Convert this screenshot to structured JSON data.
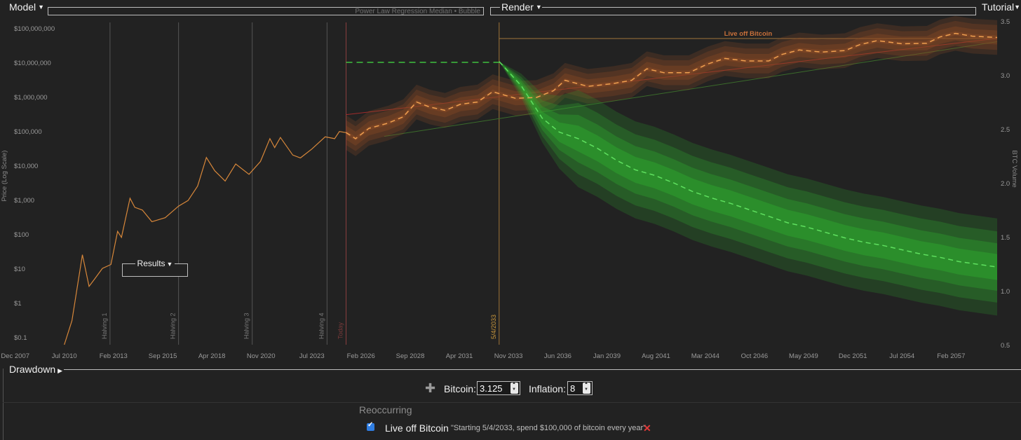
{
  "menus": {
    "model": "Model",
    "model_subtitle": "Power Law Regression Median • Bubble",
    "render": "Render",
    "tutorial": "Tutorial",
    "results": "Results",
    "drawdown": "Drawdown"
  },
  "colors": {
    "background": "#222222",
    "price": "#d7873a",
    "projection_band": "#8a4a26",
    "drawdown": "#2fa82f",
    "grid": "#3a3a3a",
    "halving_line": "#555555",
    "today_line": "#8b3f3f",
    "event_line": "#a0743a"
  },
  "chart_data": {
    "type": "line",
    "ylabel_left": "Price (Log Scale)",
    "ylabel_right": "BTC Volume",
    "y_scale": "log",
    "y_ticks": [
      "$100,000,000",
      "$10,000,000",
      "$1,000,000",
      "$100,000",
      "$10,000",
      "$1,000",
      "$100",
      "$10",
      "$1",
      "$0.1"
    ],
    "y_tick_values": [
      100000000,
      10000000,
      1000000,
      100000,
      10000,
      1000,
      100,
      10,
      1,
      0.1
    ],
    "y2_ticks": [
      "3.5",
      "3.0",
      "2.5",
      "2.0",
      "1.5",
      "1.0",
      "0.5"
    ],
    "y2_tick_values": [
      3.5,
      3.0,
      2.5,
      2.0,
      1.5,
      1.0,
      0.5
    ],
    "x_ticks": [
      "Dec 2007",
      "Jul 2010",
      "Feb 2013",
      "Sep 2015",
      "Apr 2018",
      "Nov 2020",
      "Jul 2023",
      "Feb 2026",
      "Sep 2028",
      "Apr 2031",
      "Nov 2033",
      "Jun 2036",
      "Jan 2039",
      "Aug 2041",
      "Mar 2044",
      "Oct 2046",
      "May 2049",
      "Dec 2051",
      "Jul 2054",
      "Feb 2057"
    ],
    "x_tick_years": [
      2007.92,
      2010.5,
      2013.08,
      2015.67,
      2018.25,
      2020.83,
      2023.5,
      2026.08,
      2028.67,
      2031.25,
      2033.83,
      2036.42,
      2039.0,
      2041.58,
      2044.17,
      2046.75,
      2049.33,
      2051.92,
      2054.5,
      2057.08
    ],
    "x_range": [
      2007.6,
      2059.5
    ],
    "y_range": [
      0.06,
      160000000
    ],
    "y2_range": [
      0.5,
      3.5
    ],
    "vertical_markers": [
      {
        "label": "Halving 1",
        "year": 2012.9,
        "kind": "halving"
      },
      {
        "label": "Halving 2",
        "year": 2016.5,
        "kind": "halving"
      },
      {
        "label": "Halving 3",
        "year": 2020.37,
        "kind": "halving"
      },
      {
        "label": "Halving 4",
        "year": 2024.3,
        "kind": "halving"
      },
      {
        "label": "Today",
        "year": 2025.3,
        "kind": "today"
      },
      {
        "label": "5/4/2033",
        "year": 2033.34,
        "kind": "event"
      }
    ],
    "event_band": {
      "label": "Live off Bitcoin",
      "from_year": 2033.34
    },
    "target_price": {
      "year_from": 2025.3,
      "year_to": 2033.34,
      "value": 10000000
    },
    "series": [
      {
        "name": "Price history",
        "axis": "left",
        "points": [
          [
            2010.5,
            0.06
          ],
          [
            2010.9,
            0.3
          ],
          [
            2011.45,
            25
          ],
          [
            2011.8,
            3
          ],
          [
            2012.1,
            5
          ],
          [
            2012.5,
            10
          ],
          [
            2012.95,
            13
          ],
          [
            2013.3,
            120
          ],
          [
            2013.5,
            80
          ],
          [
            2013.95,
            1100
          ],
          [
            2014.2,
            600
          ],
          [
            2014.6,
            500
          ],
          [
            2015.1,
            230
          ],
          [
            2015.8,
            300
          ],
          [
            2016.5,
            650
          ],
          [
            2017.0,
            950
          ],
          [
            2017.5,
            2500
          ],
          [
            2017.96,
            17000
          ],
          [
            2018.4,
            7000
          ],
          [
            2018.95,
            3500
          ],
          [
            2019.5,
            11000
          ],
          [
            2020.2,
            5500
          ],
          [
            2020.8,
            13000
          ],
          [
            2021.3,
            60000
          ],
          [
            2021.55,
            33000
          ],
          [
            2021.85,
            65000
          ],
          [
            2022.5,
            20000
          ],
          [
            2022.9,
            16500
          ],
          [
            2023.5,
            30000
          ],
          [
            2024.2,
            68000
          ],
          [
            2024.7,
            60000
          ],
          [
            2024.95,
            97000
          ],
          [
            2025.3,
            90000
          ]
        ]
      },
      {
        "name": "Median projection",
        "axis": "left",
        "points": [
          [
            2025.3,
            90000
          ],
          [
            2025.8,
            60000
          ],
          [
            2026.5,
            120000
          ],
          [
            2027.5,
            170000
          ],
          [
            2028.3,
            260000
          ],
          [
            2029.0,
            700000
          ],
          [
            2029.7,
            500000
          ],
          [
            2030.5,
            400000
          ],
          [
            2031.3,
            600000
          ],
          [
            2032.2,
            700000
          ],
          [
            2033.0,
            1400000
          ],
          [
            2034.2,
            900000
          ],
          [
            2035.3,
            950000
          ],
          [
            2036.2,
            1500000
          ],
          [
            2036.8,
            3000000
          ],
          [
            2038.0,
            2000000
          ],
          [
            2039.3,
            2400000
          ],
          [
            2040.3,
            3000000
          ],
          [
            2041.1,
            6500000
          ],
          [
            2042.0,
            5000000
          ],
          [
            2043.3,
            5000000
          ],
          [
            2044.3,
            9000000
          ],
          [
            2045.2,
            13000000
          ],
          [
            2046.3,
            11000000
          ],
          [
            2047.5,
            11000000
          ],
          [
            2048.2,
            17000000
          ],
          [
            2049.1,
            23000000
          ],
          [
            2050.3,
            20000000
          ],
          [
            2051.5,
            22000000
          ],
          [
            2052.3,
            33000000
          ],
          [
            2053.2,
            43000000
          ],
          [
            2054.5,
            35000000
          ],
          [
            2055.8,
            36000000
          ],
          [
            2056.5,
            55000000
          ],
          [
            2057.3,
            70000000
          ],
          [
            2058.2,
            58000000
          ],
          [
            2059.5,
            53000000
          ]
        ]
      },
      {
        "name": "BTC remaining (median)",
        "axis": "right",
        "points": [
          [
            2033.34,
            3.125
          ],
          [
            2034.5,
            2.9
          ],
          [
            2035.6,
            2.6
          ],
          [
            2036.5,
            2.47
          ],
          [
            2037.5,
            2.41
          ],
          [
            2038.5,
            2.32
          ],
          [
            2039.5,
            2.21
          ],
          [
            2040.5,
            2.12
          ],
          [
            2041.5,
            2.07
          ],
          [
            2042.5,
            2.0
          ],
          [
            2043.5,
            1.92
          ],
          [
            2044.5,
            1.86
          ],
          [
            2045.5,
            1.81
          ],
          [
            2046.5,
            1.75
          ],
          [
            2047.5,
            1.69
          ],
          [
            2048.5,
            1.63
          ],
          [
            2049.5,
            1.59
          ],
          [
            2050.5,
            1.54
          ],
          [
            2051.5,
            1.49
          ],
          [
            2052.5,
            1.45
          ],
          [
            2053.5,
            1.42
          ],
          [
            2054.5,
            1.38
          ],
          [
            2055.5,
            1.34
          ],
          [
            2056.5,
            1.31
          ],
          [
            2057.5,
            1.27
          ],
          [
            2059.5,
            1.22
          ]
        ]
      }
    ]
  },
  "controls": {
    "bitcoin_label": "Bitcoin:",
    "bitcoin_value": "3.125",
    "inflation_label": "Inflation:",
    "inflation_value": "8"
  },
  "reoccurring": {
    "heading": "Reoccurring",
    "events": [
      {
        "checked": true,
        "name": "Live off Bitcoin",
        "description": "\"Starting 5/4/2033, spend $100,000 of bitcoin every year\""
      }
    ]
  },
  "icons": {
    "add": "plus-icon",
    "delete": "delete-icon",
    "caret": "caret-down-icon"
  }
}
